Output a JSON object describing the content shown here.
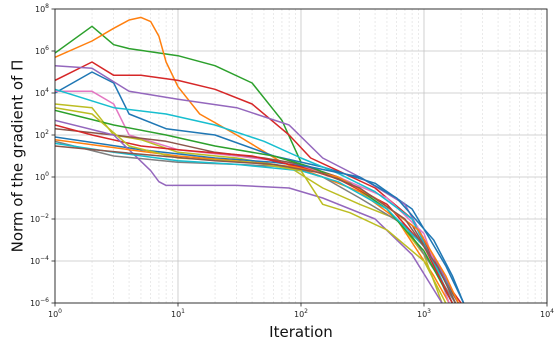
{
  "chart_data": {
    "type": "line",
    "xlabel": "Iteration",
    "ylabel": "Norm of the gradient of Π",
    "xscale": "log",
    "yscale": "log",
    "xlim": [
      1,
      10000
    ],
    "ylim": [
      1e-06,
      100000000.0
    ],
    "grid": true,
    "x_ticks": [
      {
        "value": 1,
        "base": "10",
        "exp": "0"
      },
      {
        "value": 10,
        "base": "10",
        "exp": "1"
      },
      {
        "value": 100,
        "base": "10",
        "exp": "2"
      },
      {
        "value": 1000,
        "base": "10",
        "exp": "3"
      },
      {
        "value": 10000,
        "base": "10",
        "exp": "4"
      }
    ],
    "y_ticks": [
      {
        "value": 1e-06,
        "base": "10",
        "exp": "−6"
      },
      {
        "value": 0.0001,
        "base": "10",
        "exp": "−4"
      },
      {
        "value": 0.01,
        "base": "10",
        "exp": "−2"
      },
      {
        "value": 1,
        "base": "10",
        "exp": "0"
      },
      {
        "value": 100,
        "base": "10",
        "exp": "2"
      },
      {
        "value": 10000.0,
        "base": "10",
        "exp": "4"
      },
      {
        "value": 1000000.0,
        "base": "10",
        "exp": "6"
      },
      {
        "value": 100000000.0,
        "base": "10",
        "exp": "8"
      }
    ],
    "series": [
      {
        "color": "#2ca02c",
        "points": [
          [
            1,
            800000.0
          ],
          [
            2,
            15000000.0
          ],
          [
            3,
            2000000.0
          ],
          [
            4,
            1300000.0
          ],
          [
            10,
            600000.0
          ],
          [
            20,
            200000.0
          ],
          [
            40,
            30000.0
          ],
          [
            70,
            500.0
          ],
          [
            100,
            5
          ]
        ]
      },
      {
        "color": "#ff7f0e",
        "points": [
          [
            1,
            500000.0
          ],
          [
            2,
            3000000.0
          ],
          [
            3,
            12000000.0
          ],
          [
            4,
            30000000.0
          ],
          [
            5,
            40000000.0
          ],
          [
            6,
            25000000.0
          ],
          [
            7,
            5000000.0
          ],
          [
            8,
            300000.0
          ],
          [
            10,
            20000.0
          ],
          [
            15,
            1000.0
          ],
          [
            30,
            100.0
          ],
          [
            70,
            5
          ],
          [
            150,
            1
          ],
          [
            300,
            0.2
          ],
          [
            600,
            0.01
          ],
          [
            1200,
            2e-05
          ],
          [
            1600,
            1e-06
          ]
        ]
      },
      {
        "color": "#d62728",
        "points": [
          [
            1,
            40000.0
          ],
          [
            2,
            300000.0
          ],
          [
            3,
            70000.0
          ],
          [
            5,
            70000.0
          ],
          [
            10,
            40000.0
          ],
          [
            20,
            15000.0
          ],
          [
            40,
            3000.0
          ],
          [
            80,
            100.0
          ],
          [
            120,
            8
          ],
          [
            200,
            2
          ],
          [
            400,
            0.3
          ],
          [
            800,
            0.01
          ],
          [
            1500,
            1e-05
          ],
          [
            2000,
            1e-06
          ]
        ]
      },
      {
        "color": "#1f77b4",
        "points": [
          [
            1,
            10000.0
          ],
          [
            2,
            100000.0
          ],
          [
            3,
            30000.0
          ],
          [
            4,
            1000.0
          ],
          [
            8,
            200.0
          ],
          [
            20,
            100.0
          ],
          [
            60,
            10
          ],
          [
            150,
            3
          ],
          [
            400,
            0.5
          ],
          [
            800,
            0.03
          ],
          [
            1500,
            6e-05
          ],
          [
            2100,
            1e-06
          ]
        ]
      },
      {
        "color": "#9467bd",
        "points": [
          [
            1,
            200000.0
          ],
          [
            2,
            150000.0
          ],
          [
            4,
            12000.0
          ],
          [
            10,
            5000.0
          ],
          [
            30,
            2000.0
          ],
          [
            80,
            300.0
          ],
          [
            150,
            8
          ],
          [
            300,
            1
          ],
          [
            700,
            0.05
          ],
          [
            1400,
            3e-05
          ],
          [
            1900,
            1e-06
          ]
        ]
      },
      {
        "color": "#e377c2",
        "points": [
          [
            1,
            12000.0
          ],
          [
            2,
            12000.0
          ],
          [
            3,
            3000.0
          ],
          [
            4,
            100.0
          ],
          [
            10,
            20
          ],
          [
            30,
            10
          ],
          [
            80,
            5
          ],
          [
            200,
            1
          ],
          [
            500,
            0.1
          ],
          [
            1000,
            0.002
          ],
          [
            1600,
            1e-06
          ]
        ]
      },
      {
        "color": "#17becf",
        "points": [
          [
            1,
            15000.0
          ],
          [
            3,
            2000.0
          ],
          [
            8,
            1000.0
          ],
          [
            20,
            300.0
          ],
          [
            50,
            50
          ],
          [
            100,
            8
          ],
          [
            200,
            1.5
          ],
          [
            400,
            0.2
          ],
          [
            800,
            0.01
          ],
          [
            1300,
            3e-05
          ],
          [
            1700,
            1e-06
          ]
        ]
      },
      {
        "color": "#bcbd22",
        "points": [
          [
            1,
            3000.0
          ],
          [
            2,
            2000.0
          ],
          [
            3,
            100.0
          ],
          [
            5,
            60
          ],
          [
            10,
            15
          ],
          [
            30,
            8
          ],
          [
            80,
            3
          ],
          [
            150,
            0.3
          ],
          [
            300,
            0.05
          ],
          [
            600,
            0.01
          ],
          [
            1000,
            0.0002
          ],
          [
            1400,
            1e-06
          ]
        ]
      },
      {
        "color": "#8c564b",
        "points": [
          [
            1,
            200.0
          ],
          [
            3,
            100.0
          ],
          [
            8,
            50
          ],
          [
            20,
            15
          ],
          [
            50,
            8
          ],
          [
            100,
            4
          ],
          [
            200,
            1
          ],
          [
            400,
            0.1
          ],
          [
            800,
            0.005
          ],
          [
            1400,
            2e-05
          ],
          [
            1900,
            1e-06
          ]
        ]
      },
      {
        "color": "#7f7f7f",
        "points": [
          [
            1,
            50
          ],
          [
            3,
            10
          ],
          [
            10,
            5
          ],
          [
            30,
            4
          ],
          [
            80,
            3
          ],
          [
            150,
            1
          ],
          [
            300,
            0.1
          ],
          [
            700,
            0.005
          ],
          [
            1300,
            2e-05
          ],
          [
            1800,
            1e-06
          ]
        ]
      },
      {
        "color": "#2ca02c",
        "points": [
          [
            1,
            1500.0
          ],
          [
            3,
            300.0
          ],
          [
            8,
            100.0
          ],
          [
            20,
            30
          ],
          [
            60,
            10
          ],
          [
            120,
            3
          ],
          [
            250,
            0.5
          ],
          [
            500,
            0.03
          ],
          [
            1000,
            0.0003
          ],
          [
            1700,
            1e-06
          ]
        ]
      },
      {
        "color": "#1f77b4",
        "points": [
          [
            1,
            80
          ],
          [
            5,
            20
          ],
          [
            20,
            8
          ],
          [
            60,
            5
          ],
          [
            120,
            3
          ],
          [
            300,
            1
          ],
          [
            600,
            0.1
          ],
          [
            1200,
            0.001
          ],
          [
            1700,
            2e-05
          ],
          [
            2100,
            1e-06
          ]
        ]
      },
      {
        "color": "#d62728",
        "points": [
          [
            1,
            300.0
          ],
          [
            2,
            100.0
          ],
          [
            5,
            30
          ],
          [
            10,
            20
          ],
          [
            40,
            10
          ],
          [
            100,
            3
          ],
          [
            200,
            0.8
          ],
          [
            500,
            0.05
          ],
          [
            1000,
            0.0005
          ],
          [
            1700,
            1e-06
          ]
        ]
      },
      {
        "color": "#9467bd",
        "points": [
          [
            1,
            500.0
          ],
          [
            3,
            100.0
          ],
          [
            6,
            2
          ],
          [
            7,
            0.6
          ],
          [
            8,
            0.4
          ],
          [
            30,
            0.4
          ],
          [
            80,
            0.3
          ],
          [
            150,
            0.1
          ],
          [
            400,
            0.01
          ],
          [
            800,
            0.0002
          ],
          [
            1400,
            1e-06
          ]
        ]
      },
      {
        "color": "#ff7f0e",
        "points": [
          [
            1,
            60
          ],
          [
            4,
            20
          ],
          [
            10,
            10
          ],
          [
            40,
            5
          ],
          [
            90,
            3
          ],
          [
            200,
            1
          ],
          [
            400,
            0.1
          ],
          [
            900,
            0.003
          ],
          [
            1500,
            2e-05
          ],
          [
            1900,
            1e-06
          ]
        ]
      },
      {
        "color": "#17becf",
        "points": [
          [
            1,
            40
          ],
          [
            3,
            15
          ],
          [
            10,
            6
          ],
          [
            30,
            4
          ],
          [
            100,
            2
          ],
          [
            200,
            0.6
          ],
          [
            500,
            0.03
          ],
          [
            1000,
            0.0005
          ],
          [
            1500,
            1e-05
          ],
          [
            1800,
            1e-06
          ]
        ]
      },
      {
        "color": "#bcbd22",
        "points": [
          [
            1,
            2000.0
          ],
          [
            2,
            1000.0
          ],
          [
            4,
            30
          ],
          [
            10,
            8
          ],
          [
            40,
            5
          ],
          [
            100,
            2
          ],
          [
            150,
            0.05
          ],
          [
            250,
            0.02
          ],
          [
            500,
            0.003
          ],
          [
            1000,
            0.0001
          ],
          [
            1500,
            1e-06
          ]
        ]
      },
      {
        "color": "#8c564b",
        "points": [
          [
            1,
            30
          ],
          [
            5,
            12
          ],
          [
            20,
            6
          ],
          [
            60,
            4
          ],
          [
            150,
            1.5
          ],
          [
            300,
            0.3
          ],
          [
            700,
            0.01
          ],
          [
            1300,
            5e-05
          ],
          [
            1800,
            1e-06
          ]
        ]
      }
    ]
  }
}
